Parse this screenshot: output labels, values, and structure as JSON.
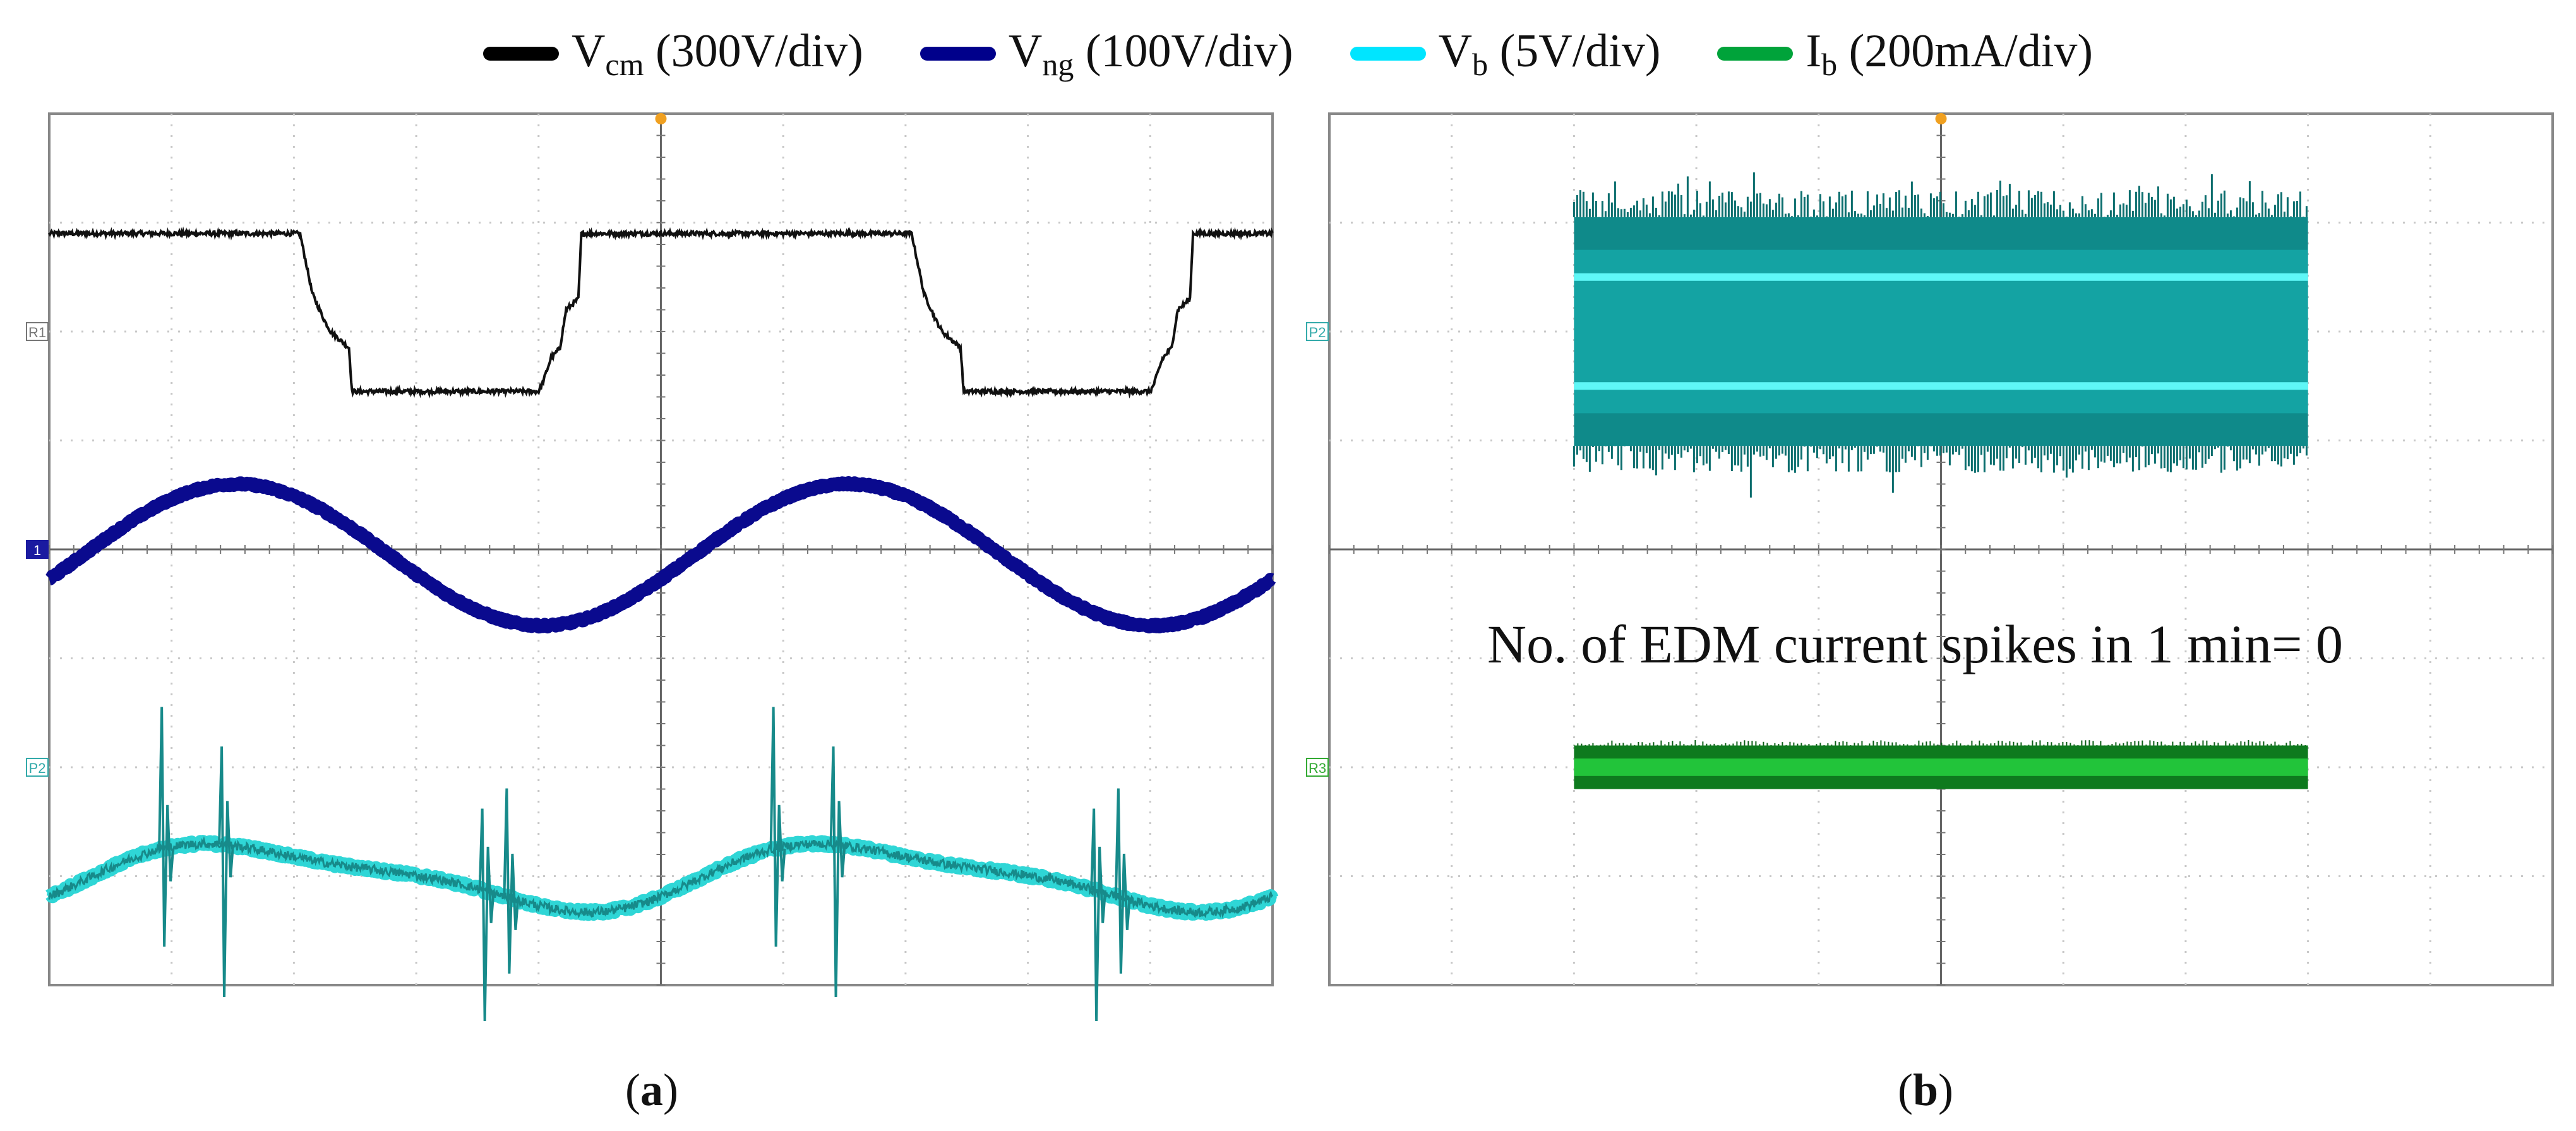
{
  "legend": [
    {
      "main": "V",
      "sub": "cm",
      "rest": " (300V/div)",
      "color": "#000000"
    },
    {
      "main": "V",
      "sub": "ng",
      "rest": " (100V/div)",
      "color": "#00008b"
    },
    {
      "main": "V",
      "sub": "b",
      "rest": " (5V/div)",
      "color": "#00e5ff"
    },
    {
      "main": "I",
      "sub": "b",
      "rest": " (200mA/div)",
      "color": "#00a33a"
    }
  ],
  "panel_a": {
    "open": "(",
    "letter": "a",
    "close": ")"
  },
  "panel_b": {
    "open": "(",
    "letter": "b",
    "close": ")"
  },
  "annotation": "No. of EDM current spikes in 1 min= 0",
  "chart_data": [
    {
      "type": "line",
      "panel": "a",
      "divisions": {
        "x": 10,
        "y": 8
      },
      "channel_markers": [
        "R1",
        "1",
        "P2"
      ],
      "series": [
        {
          "name": "Vcm (300V/div)",
          "color": "#000000",
          "description_levels_div": [
            3.0,
            2.05,
            1.5,
            0.95,
            0.0
          ],
          "period_div": 5.0
        },
        {
          "name": "Vng (100V/div)",
          "color": "#00008b",
          "waveform": "sinusoid",
          "amplitude_div": 0.6,
          "period_div": 5.0
        },
        {
          "name": "Vb (5V/div)",
          "color": "#00e5ff",
          "waveform": "sinusoid with switching spikes",
          "amplitude_div": 0.3,
          "period_div": 5.0
        }
      ]
    },
    {
      "type": "line",
      "panel": "b",
      "divisions": {
        "x": 10,
        "y": 8
      },
      "channel_markers": [
        "P2",
        "R3"
      ],
      "series": [
        {
          "name": "Vb (5V/div)",
          "color": "#00e5ff",
          "band_div": [
            -1.1,
            1.1
          ],
          "span_div": [
            2.0,
            8.0
          ]
        },
        {
          "name": "Ib (200mA/div)",
          "color": "#00a33a",
          "band_div": [
            -0.15,
            0.15
          ],
          "span_div": [
            2.0,
            8.0
          ],
          "spikes": 0
        }
      ]
    }
  ]
}
